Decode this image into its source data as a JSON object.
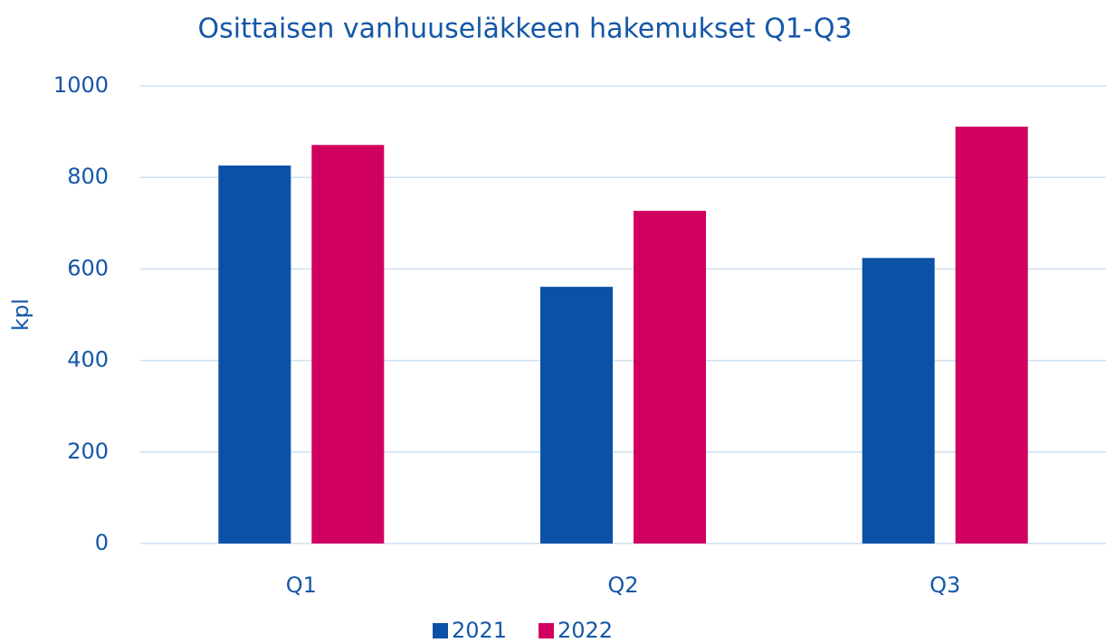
{
  "chart_data": {
    "type": "bar",
    "title": "Osittaisen vanhuuseläkkeen hakemukset Q1-Q3",
    "y_label": "kpl",
    "categories": [
      "Q1",
      "Q2",
      "Q3"
    ],
    "series": [
      {
        "name": "2021",
        "color": "#0b51a6",
        "values": [
          826,
          561,
          624
        ]
      },
      {
        "name": "2022",
        "color": "#d10060",
        "values": [
          871,
          727,
          911
        ]
      }
    ],
    "ylim": [
      0,
      1000
    ],
    "yticks": [
      0,
      200,
      400,
      600,
      800,
      1000
    ],
    "grid": true
  }
}
